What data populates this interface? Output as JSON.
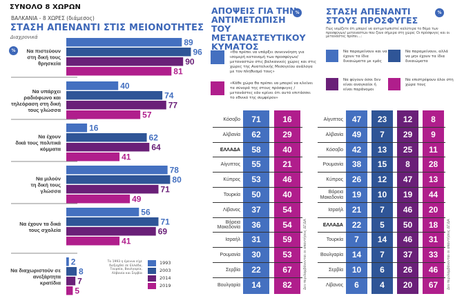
{
  "header": {
    "main_title": "ΣΥΝΟΛΟ 8 ΧΩΡΩΝ"
  },
  "section1": {
    "subtitle": "ΒΑΛΚΑΝΙΑ - 8 ΧΩΡΕΣ (διάμεσος)",
    "title": "ΣΤΑΣΗ ΑΠΕΝΑΝΤΙ ΣΤΙΣ ΜΕΙΟΝΟΤΗΤΕΣ",
    "note": "Διαχρονικά",
    "badge": "%",
    "legend_note": "Το 1993 η έρευνα είχε διεξαχθεί σε Ελλάδα, Τουρκία, Βουλγαρία, Αλβανία και Σερβία"
  },
  "section2": {
    "title_lines": [
      "ΑΠΟΨΕΙΣ ΓΙΑ ΤΗΝ",
      "ΑΝΤΙΜΕΤΩΠΙΣΗ",
      "ΤΟΥ ΜΕΤΑΝΑΣΤΕΥΤΙΚΟΥ",
      "ΚΥΜΑΤΟΣ"
    ],
    "badge": "%",
    "quote1": "«Θα πρέπει να υπάρξει συνεννόηση για ισομερή κατανομή των προσφύγων/ μεταναστών στις βαλκανικές χώρες και στις χώρες της Ανατολικής Μεσογείου ανάλογα με τον πληθυσμό τους»",
    "quote2": "«Κάθε χώρα θα πρέπει να μπορεί να κλείνει τα σύνορά της στους πρόσφυγες /μετανάστες εάν κρίνει ότι αυτό επιτάσσει το εθνικό της συμφέρον»",
    "footnote": "Δεν περιλαμβάνονται οι απαντήσεις ΔΓ/ΔΑ"
  },
  "section3": {
    "title_lines": [
      "ΣΤΑΣΗ ΑΠΕΝΑΝΤΙ",
      "ΣΤΟΥΣ ΠΡΟΣΦΥΓΕΣ"
    ],
    "badge": "%",
    "question": "Πώς νομίζετε ότι μπορεί να αντιμετωπιστεί καλύτερα το θέμα των προσφύγων/ μεταναστών που ζουν σήμερα στη χώρα; Οι πρόσφυγες και οι μετανάστες πρέπει...:",
    "legend": [
      "Να παραμείνουν και να έχουν τα ίδια δικαιώματα με εμάς",
      "Να παραμείνουν, αλλά να μην έχουν τα ίδια δικαιώματα",
      "Να φύγουν όσοι δεν είναι αναγκαίοι ή είναι παράνομοι",
      "Να επιστρέψουν όλοι στη χώρα τους"
    ],
    "footnote": "Δεν περιλαμβάνονται οι απαντήσεις ΔΓ/ΔΑ"
  },
  "colors": {
    "c1993": "#4470c0",
    "c2003": "#2f5597",
    "c2014": "#6a2078",
    "c2019": "#b01e8c",
    "accent": "#3d67b8"
  },
  "chart_data": [
    {
      "type": "bar",
      "title": "ΣΤΑΣΗ ΑΠΕΝΑΝΤΙ ΣΤΙΣ ΜΕΙΟΝΟΤΗΤΕΣ",
      "orientation": "horizontal",
      "categories": [
        "Να πιστεύουν στη δική τους θρησκεία",
        "Να υπάρχει ραδιόφωνο και τηλεόραση στη δική τους γλώσσα",
        "Να έχουν δικά τους πολιτικά κόμματα",
        "Να μιλούν τη δική τους γλώσσα",
        "Να έχουν τα δικά τους σχολεία",
        "Να διαχωριστούν σε ανεξάρτητα κρατίδια"
      ],
      "series": [
        {
          "name": "1993",
          "values": [
            89,
            40,
            16,
            78,
            56,
            2
          ]
        },
        {
          "name": "2003",
          "values": [
            96,
            74,
            62,
            80,
            71,
            8
          ]
        },
        {
          "name": "2014",
          "values": [
            90,
            77,
            64,
            71,
            69,
            7
          ]
        },
        {
          "name": "2019",
          "values": [
            81,
            57,
            41,
            49,
            41,
            5
          ]
        }
      ],
      "xlim": [
        0,
        100
      ],
      "legend_position": "bottom-right"
    },
    {
      "type": "table",
      "title": "ΑΠΟΨΕΙΣ ΓΙΑ ΤΗΝ ΑΝΤΙΜΕΤΩΠΙΣΗ ΤΟΥ ΜΕΤΑΝΑΣΤΕΥΤΙΚΟΥ ΚΥΜΑΤΟΣ",
      "columns": [
        "Συνεννόηση για ισομερή κατανομή",
        "Κλείσιμο συνόρων"
      ],
      "rows": [
        {
          "country": "Κόσοβο",
          "values": [
            71,
            16
          ]
        },
        {
          "country": "Αλβανία",
          "values": [
            62,
            29
          ]
        },
        {
          "country": "ΕΛΛΑΔΑ",
          "values": [
            58,
            40
          ],
          "highlight": true
        },
        {
          "country": "Αίγυπτος",
          "values": [
            55,
            21
          ]
        },
        {
          "country": "Κύπρος",
          "values": [
            53,
            46
          ]
        },
        {
          "country": "Τουρκία",
          "values": [
            50,
            40
          ]
        },
        {
          "country": "Λίβανος",
          "values": [
            37,
            54
          ]
        },
        {
          "country": "Βόρεια Μακεδονία",
          "values": [
            36,
            54
          ]
        },
        {
          "country": "Ισραήλ",
          "values": [
            31,
            59
          ]
        },
        {
          "country": "Ρουμανία",
          "values": [
            30,
            53
          ]
        },
        {
          "country": "Σερβία",
          "values": [
            22,
            67
          ]
        },
        {
          "country": "Βουλγαρία",
          "values": [
            14,
            82
          ]
        }
      ]
    },
    {
      "type": "table",
      "title": "ΣΤΑΣΗ ΑΠΕΝΑΝΤΙ ΣΤΟΥΣ ΠΡΟΣΦΥΓΕΣ",
      "columns": [
        "Να παραμείνουν με ίδια δικαιώματα",
        "Να παραμείνουν χωρίς ίδια δικαιώματα",
        "Να φύγουν όσοι δεν είναι αναγκαίοι",
        "Να επιστρέψουν όλοι"
      ],
      "rows": [
        {
          "country": "Αίγυπτος",
          "values": [
            47,
            23,
            12,
            8
          ]
        },
        {
          "country": "Αλβανία",
          "values": [
            49,
            7,
            29,
            9
          ]
        },
        {
          "country": "Κόσοβο",
          "values": [
            42,
            13,
            25,
            11
          ]
        },
        {
          "country": "Ρουμανία",
          "values": [
            38,
            15,
            8,
            28
          ]
        },
        {
          "country": "Κύπρος",
          "values": [
            26,
            12,
            47,
            13
          ]
        },
        {
          "country": "Βόρεια Μακεδονία",
          "values": [
            19,
            10,
            19,
            44
          ]
        },
        {
          "country": "Ισραήλ",
          "values": [
            21,
            7,
            46,
            20
          ]
        },
        {
          "country": "ΕΛΛΑΔΑ",
          "values": [
            22,
            5,
            50,
            18
          ],
          "highlight": true
        },
        {
          "country": "Τουρκία",
          "values": [
            7,
            14,
            46,
            31
          ]
        },
        {
          "country": "Βουλγαρία",
          "values": [
            14,
            7,
            37,
            33
          ]
        },
        {
          "country": "Σερβία",
          "values": [
            10,
            6,
            26,
            46
          ]
        },
        {
          "country": "Λίβανος",
          "values": [
            6,
            4,
            20,
            67
          ]
        }
      ]
    }
  ]
}
